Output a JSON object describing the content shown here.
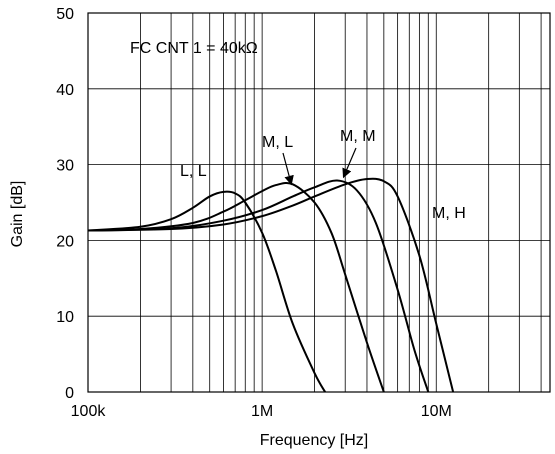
{
  "chart_data": {
    "type": "line",
    "title": "",
    "annotation": "FC CNT 1 = 40kΩ",
    "xlabel": "Frequency [Hz]",
    "ylabel": "Gain [dB]",
    "xscale": "log",
    "xlim": [
      100000,
      45000000
    ],
    "ylim": [
      0,
      50
    ],
    "grid": true,
    "x_tick_values": [
      100000,
      1000000,
      10000000
    ],
    "x_tick_labels": [
      "100k",
      "1M",
      "10M"
    ],
    "y_ticks": [
      0,
      10,
      20,
      30,
      40,
      50
    ],
    "series": [
      {
        "name": "L, L",
        "x": [
          100000,
          200000,
          300000,
          400000,
          500000,
          600000,
          700000,
          800000,
          1000000,
          1200000,
          1500000,
          2000000,
          2300000
        ],
        "y": [
          21.3,
          21.8,
          22.8,
          24.3,
          25.8,
          26.4,
          26.2,
          25.0,
          21.0,
          16.0,
          9.0,
          2.5,
          0
        ]
      },
      {
        "name": "M, L",
        "x": [
          100000,
          200000,
          400000,
          600000,
          800000,
          1000000,
          1200000,
          1500000,
          2000000,
          2500000,
          3000000,
          4000000,
          5000000
        ],
        "y": [
          21.3,
          21.5,
          22.3,
          23.8,
          25.3,
          26.5,
          27.3,
          27.4,
          25.0,
          21.0,
          15.5,
          6.5,
          0
        ]
      },
      {
        "name": "M, M",
        "x": [
          100000,
          300000,
          600000,
          1000000,
          1500000,
          2000000,
          2700000,
          3500000,
          4500000,
          6000000,
          7500000,
          9000000
        ],
        "y": [
          21.3,
          21.6,
          22.6,
          24.0,
          25.8,
          27.0,
          27.9,
          26.6,
          22.3,
          13.5,
          5.5,
          0
        ]
      },
      {
        "name": "M, H",
        "x": [
          100000,
          300000,
          600000,
          1000000,
          1500000,
          2000000,
          3000000,
          4000000,
          5000000,
          6000000,
          8000000,
          10000000,
          12500000
        ],
        "y": [
          21.3,
          21.5,
          22.1,
          23.2,
          24.6,
          25.8,
          27.4,
          28.1,
          27.8,
          25.8,
          18.0,
          9.0,
          0
        ]
      }
    ],
    "series_labels": [
      "L, L",
      "M, L",
      "M, M",
      "M, H"
    ]
  }
}
